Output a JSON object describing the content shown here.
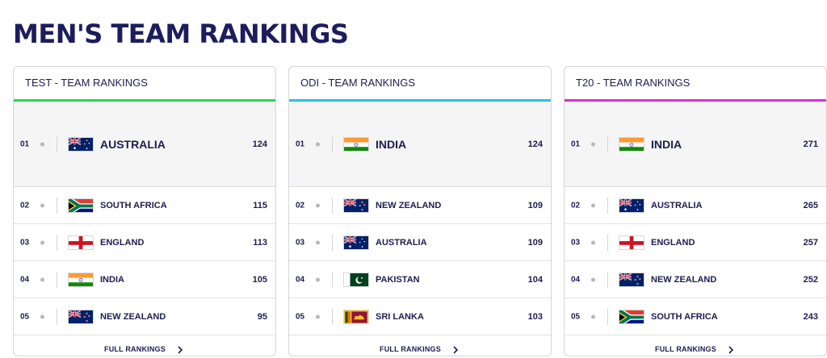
{
  "page_title": "MEN'S TEAM RANKINGS",
  "footer_label": "FULL RANKINGS",
  "cards": [
    {
      "title": "TEST - TEAM RANKINGS",
      "accent": "#2fd44e",
      "rows": [
        {
          "pos": "01",
          "team": "AUSTRALIA",
          "rating": "124",
          "flag": "australia"
        },
        {
          "pos": "02",
          "team": "SOUTH AFRICA",
          "rating": "115",
          "flag": "south-africa"
        },
        {
          "pos": "03",
          "team": "ENGLAND",
          "rating": "113",
          "flag": "england"
        },
        {
          "pos": "04",
          "team": "INDIA",
          "rating": "105",
          "flag": "india"
        },
        {
          "pos": "05",
          "team": "NEW ZEALAND",
          "rating": "95",
          "flag": "new-zealand"
        }
      ]
    },
    {
      "title": "ODI - TEAM RANKINGS",
      "accent": "#28c3d8",
      "rows": [
        {
          "pos": "01",
          "team": "INDIA",
          "rating": "124",
          "flag": "india"
        },
        {
          "pos": "02",
          "team": "NEW ZEALAND",
          "rating": "109",
          "flag": "new-zealand"
        },
        {
          "pos": "03",
          "team": "AUSTRALIA",
          "rating": "109",
          "flag": "australia"
        },
        {
          "pos": "04",
          "team": "PAKISTAN",
          "rating": "104",
          "flag": "pakistan"
        },
        {
          "pos": "05",
          "team": "SRI LANKA",
          "rating": "103",
          "flag": "sri-lanka"
        }
      ]
    },
    {
      "title": "T20 - TEAM RANKINGS",
      "accent": "#e62ad2",
      "rows": [
        {
          "pos": "01",
          "team": "INDIA",
          "rating": "271",
          "flag": "india"
        },
        {
          "pos": "02",
          "team": "AUSTRALIA",
          "rating": "265",
          "flag": "australia"
        },
        {
          "pos": "03",
          "team": "ENGLAND",
          "rating": "257",
          "flag": "england"
        },
        {
          "pos": "04",
          "team": "NEW ZEALAND",
          "rating": "252",
          "flag": "new-zealand"
        },
        {
          "pos": "05",
          "team": "SOUTH AFRICA",
          "rating": "243",
          "flag": "south-africa"
        }
      ]
    }
  ]
}
